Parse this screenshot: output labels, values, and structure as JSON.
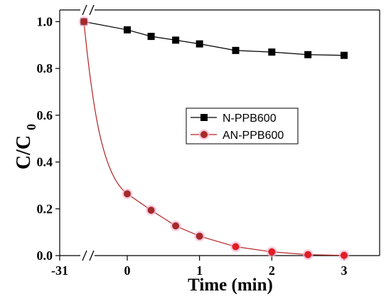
{
  "chart_data": {
    "type": "line",
    "xlabel": "Time (min)",
    "ylabel_main": "C/C",
    "ylabel_sub": "0",
    "x_break": true,
    "xlim_first_segment": [
      -31,
      -30
    ],
    "xlim_second_segment": [
      -0.5,
      3.5
    ],
    "ylim": [
      0,
      1.05
    ],
    "x_ticks": [
      {
        "value": -31,
        "label": "-31"
      },
      {
        "value": 0,
        "label": "0"
      },
      {
        "value": 1,
        "label": "1"
      },
      {
        "value": 2,
        "label": "2"
      },
      {
        "value": 3,
        "label": "3"
      }
    ],
    "y_ticks": [
      {
        "value": 0.0,
        "label": "0.0"
      },
      {
        "value": 0.2,
        "label": "0.2"
      },
      {
        "value": 0.4,
        "label": "0.4"
      },
      {
        "value": 0.6,
        "label": "0.6"
      },
      {
        "value": 0.8,
        "label": "0.8"
      },
      {
        "value": 1.0,
        "label": "1.0"
      }
    ],
    "legend_position": "center-right",
    "series": [
      {
        "name": "N-PPB600",
        "color": "#000000",
        "marker": "square",
        "points": [
          {
            "x": -30,
            "y": 1.0
          },
          {
            "x": 0,
            "y": 0.965
          },
          {
            "x": 0.33,
            "y": 0.937
          },
          {
            "x": 0.67,
            "y": 0.921
          },
          {
            "x": 1.0,
            "y": 0.905
          },
          {
            "x": 1.5,
            "y": 0.877
          },
          {
            "x": 2.0,
            "y": 0.87
          },
          {
            "x": 2.5,
            "y": 0.859
          },
          {
            "x": 3.0,
            "y": 0.856
          }
        ]
      },
      {
        "name": "AN-PPB600",
        "color": "#b22222",
        "marker": "circle",
        "points": [
          {
            "x": -30,
            "y": 1.0
          },
          {
            "x": 0,
            "y": 0.264
          },
          {
            "x": 0.33,
            "y": 0.194
          },
          {
            "x": 0.67,
            "y": 0.127
          },
          {
            "x": 1.0,
            "y": 0.083
          },
          {
            "x": 1.5,
            "y": 0.038
          },
          {
            "x": 2.0,
            "y": 0.016
          },
          {
            "x": 2.5,
            "y": 0.004
          },
          {
            "x": 3.0,
            "y": 0.001
          }
        ]
      }
    ]
  }
}
